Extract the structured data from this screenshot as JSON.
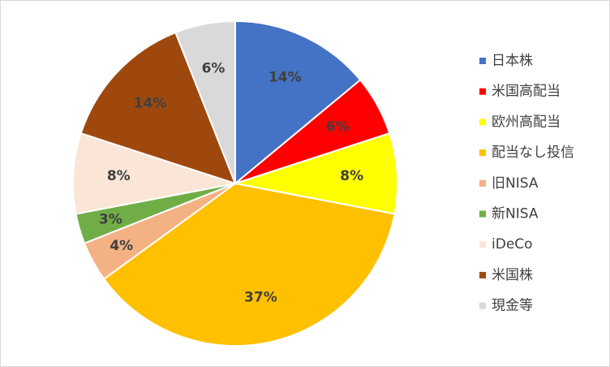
{
  "chart_data": {
    "type": "pie",
    "categories": [
      "日本株",
      "米国高配当",
      "欧州高配当",
      "配当なし投信",
      "旧NISA",
      "新NISA",
      "iDeCo",
      "米国株",
      "現金等"
    ],
    "values": [
      14,
      6,
      8,
      37,
      4,
      3,
      8,
      14,
      6
    ],
    "value_labels": [
      "14%",
      "6%",
      "8%",
      "37%",
      "4%",
      "3%",
      "8%",
      "14%",
      "6%"
    ],
    "colors": [
      "#4472c4",
      "#ff0000",
      "#ffff00",
      "#ffc000",
      "#f4b183",
      "#70ad47",
      "#fbe5d6",
      "#9e480e",
      "#d9d9d9"
    ],
    "legend": "right"
  }
}
